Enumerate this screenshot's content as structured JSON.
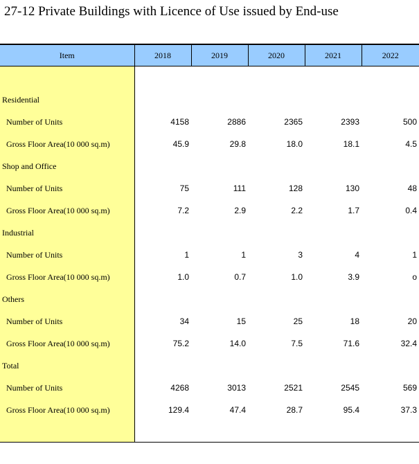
{
  "title": "27-12  Private Buildings with Licence of Use issued by End-use",
  "table": {
    "item_header": "Item",
    "years": [
      "2018",
      "2019",
      "2020",
      "2021",
      "2022"
    ],
    "sections": [
      {
        "label": "Residential",
        "rows": [
          {
            "label": "Number of Units",
            "values": [
              "4158",
              "2886",
              "2365",
              "2393",
              "500"
            ]
          },
          {
            "label": "Gross Floor Area(10 000 sq.m)",
            "values": [
              "45.9",
              "29.8",
              "18.0",
              "18.1",
              "4.5"
            ]
          }
        ]
      },
      {
        "label": "Shop and Office",
        "rows": [
          {
            "label": "Number of Units",
            "values": [
              "75",
              "111",
              "128",
              "130",
              "48"
            ]
          },
          {
            "label": "Gross Floor Area(10 000 sq.m)",
            "values": [
              "7.2",
              "2.9",
              "2.2",
              "1.7",
              "0.4"
            ]
          }
        ]
      },
      {
        "label": "Industrial",
        "rows": [
          {
            "label": "Number of Units",
            "values": [
              "1",
              "1",
              "3",
              "4",
              "1"
            ]
          },
          {
            "label": "Gross Floor Area(10 000 sq.m)",
            "values": [
              "1.0",
              "0.7",
              "1.0",
              "3.9",
              "o"
            ]
          }
        ]
      },
      {
        "label": "Others",
        "rows": [
          {
            "label": "Number of Units",
            "values": [
              "34",
              "15",
              "25",
              "18",
              "20"
            ]
          },
          {
            "label": "Gross Floor Area(10 000 sq.m)",
            "values": [
              "75.2",
              "14.0",
              "7.5",
              "71.6",
              "32.4"
            ]
          }
        ]
      },
      {
        "label": "Total",
        "rows": [
          {
            "label": "Number of Units",
            "values": [
              "4268",
              "3013",
              "2521",
              "2545",
              "569"
            ]
          },
          {
            "label": "Gross Floor Area(10 000 sq.m)",
            "values": [
              "129.4",
              "47.4",
              "28.7",
              "95.4",
              "37.3"
            ]
          }
        ]
      }
    ]
  }
}
